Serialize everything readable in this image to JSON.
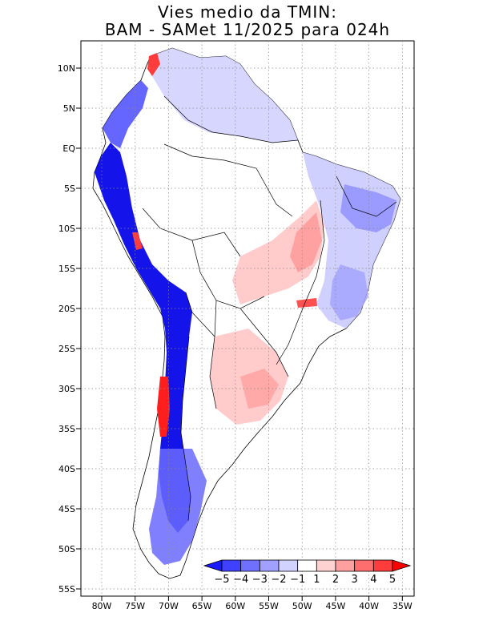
{
  "title": {
    "line1": "Vies medio da TMIN:",
    "line2": "BAM - SAMet 11/2025  para 024h"
  },
  "chart_data": {
    "type": "heatmap",
    "variable": "TMIN bias",
    "model": "BAM",
    "reference": "SAMet",
    "period": "11/2025",
    "lead": "024h",
    "lat_ticks": [
      "10N",
      "5N",
      "EQ",
      "5S",
      "10S",
      "15S",
      "20S",
      "25S",
      "30S",
      "35S",
      "40S",
      "45S",
      "50S",
      "55S"
    ],
    "lon_ticks": [
      "80W",
      "75W",
      "70W",
      "65W",
      "60W",
      "55W",
      "50W",
      "45W",
      "40W",
      "35W"
    ],
    "lon_range": [
      -83,
      -34
    ],
    "lat_range": [
      -56,
      14
    ],
    "colorbar": {
      "labels": [
        "-5",
        "-4",
        "-3",
        "-2",
        "-1",
        "1",
        "2",
        "3",
        "4",
        "5"
      ],
      "colors": [
        "#1a1aff",
        "#4040ff",
        "#7070ff",
        "#a0a0ff",
        "#d2d2ff",
        "#ffffff",
        "#ffd2d2",
        "#ffa0a0",
        "#ff6e6e",
        "#ff3c3c",
        "#ff0000"
      ]
    }
  },
  "colors": {
    "deep_blue": "#0000e8",
    "mid_blue": "#6a6aff",
    "light_blue": "#c8c8ff",
    "light_red": "#ffc8c8",
    "mid_red": "#ff8080",
    "red": "#ff1e1e",
    "border": "#000000",
    "grid": "#888888"
  }
}
